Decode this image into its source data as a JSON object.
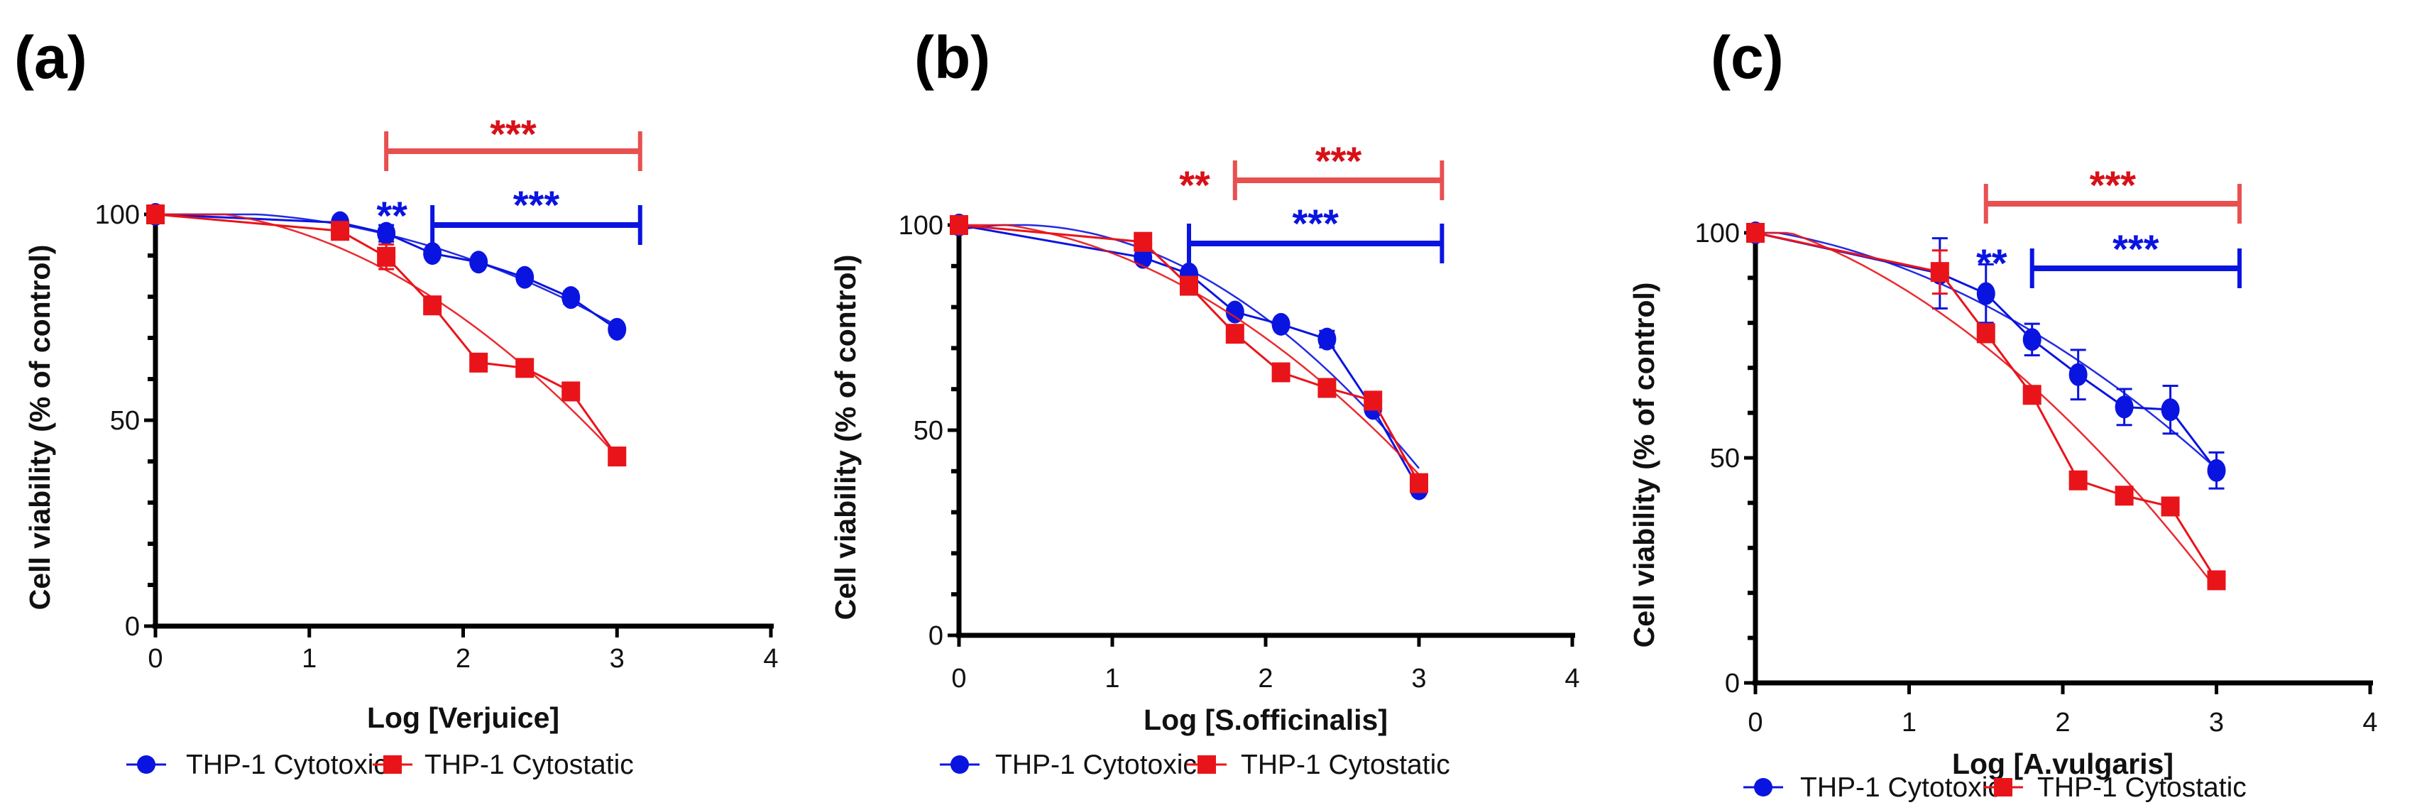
{
  "chart_data": [
    {
      "type": "line",
      "panel_label": "(a)",
      "xlabel": "Log [Verjuice]",
      "ylabel": "Cell viability (% of control)",
      "xlim": [
        0,
        4
      ],
      "ylim": [
        0,
        100
      ],
      "xticks": [
        "0",
        "1",
        "2",
        "3",
        "4"
      ],
      "yticks": [
        "0",
        "50",
        "100"
      ],
      "x": [
        0,
        1.2,
        1.5,
        1.8,
        2.1,
        2.4,
        2.7,
        3.0
      ],
      "series": [
        {
          "name": "THP-1 Cytotoxic",
          "marker": "circle",
          "color": "#0a14e0",
          "values": [
            100,
            98,
            95.4,
            90.5,
            88.4,
            84.7,
            79.8,
            72.1
          ],
          "err": [
            0,
            0.5,
            2,
            1,
            0.5,
            0.5,
            1.5,
            0.5
          ]
        },
        {
          "name": "THP-1 Cytostatic",
          "marker": "square",
          "color": "#e8141a",
          "values": [
            100,
            96,
            89.7,
            77.9,
            64,
            62.7,
            57,
            41.2
          ],
          "err": [
            0,
            0.5,
            3,
            0.5,
            0.5,
            0.5,
            0.5,
            0.5
          ]
        }
      ],
      "significance": [
        {
          "series": "THP-1 Cytostatic",
          "label": "***",
          "from": 1.5,
          "to": 3.15
        },
        {
          "series": "THP-1 Cytotoxic",
          "label": "***",
          "from": 1.8,
          "to": 3.15
        },
        {
          "series": "THP-1 Cytotoxic",
          "label": "**",
          "at": 1.5
        }
      ]
    },
    {
      "type": "line",
      "panel_label": "(b)",
      "xlabel": "Log [S.officinalis]",
      "ylabel": "Cell viability (% of control)",
      "xlim": [
        0,
        4
      ],
      "ylim": [
        0,
        100
      ],
      "xticks": [
        "0",
        "1",
        "2",
        "3",
        "4"
      ],
      "yticks": [
        "0",
        "50",
        "100"
      ],
      "x": [
        0,
        1.2,
        1.5,
        1.8,
        2.1,
        2.4,
        2.7,
        3.0
      ],
      "series": [
        {
          "name": "THP-1 Cytotoxic",
          "marker": "circle",
          "color": "#0a14e0",
          "values": [
            100,
            92.1,
            88.1,
            78.8,
            75.8,
            72.2,
            55.3,
            35.7
          ],
          "err": [
            0,
            0.5,
            0.5,
            0.5,
            0.5,
            2,
            0.5,
            0.5
          ]
        },
        {
          "name": "THP-1 Cytostatic",
          "marker": "square",
          "color": "#e8141a",
          "values": [
            100,
            95.9,
            85.2,
            73.5,
            64.1,
            60.3,
            57.2,
            37.1
          ],
          "err": [
            0,
            0.5,
            0.5,
            0.5,
            0.5,
            0.5,
            0.5,
            0.5
          ]
        }
      ],
      "significance": [
        {
          "series": "THP-1 Cytostatic",
          "label": "***",
          "from": 1.8,
          "to": 3.15
        },
        {
          "series": "THP-1 Cytostatic",
          "label": "**",
          "at": 1.5
        },
        {
          "series": "THP-1 Cytotoxic",
          "label": "***",
          "from": 1.5,
          "to": 3.15
        }
      ]
    },
    {
      "type": "line",
      "panel_label": "(c)",
      "xlabel": "Log [A.vulgaris]",
      "ylabel": "Cell viability (% of control)",
      "xlim": [
        0,
        4
      ],
      "ylim": [
        0,
        100
      ],
      "xticks": [
        "0",
        "1",
        "2",
        "3",
        "4"
      ],
      "yticks": [
        "0",
        "50",
        "100"
      ],
      "x": [
        0,
        1.2,
        1.5,
        1.8,
        2.1,
        2.4,
        2.7,
        3.0
      ],
      "series": [
        {
          "name": "THP-1 Cytotoxic",
          "marker": "circle",
          "color": "#0a14e0",
          "values": [
            100,
            91,
            86.5,
            76.3,
            68.5,
            61.3,
            60.7,
            47.2
          ],
          "err": [
            0,
            7.8,
            6.5,
            3.5,
            5.5,
            4,
            5.3,
            4
          ]
        },
        {
          "name": "THP-1 Cytostatic",
          "marker": "square",
          "color": "#e8141a",
          "values": [
            100,
            91.3,
            77.7,
            64,
            45,
            41.6,
            39.2,
            22.8
          ],
          "err": [
            0,
            4.8,
            2,
            0.5,
            0.5,
            0.5,
            0.5,
            0.5
          ]
        }
      ],
      "significance": [
        {
          "series": "THP-1 Cytostatic",
          "label": "***",
          "from": 1.5,
          "to": 3.15
        },
        {
          "series": "THP-1 Cytotoxic",
          "label": "***",
          "from": 1.8,
          "to": 3.15
        },
        {
          "series": "THP-1 Cytotoxic",
          "label": "**",
          "at": 1.5
        }
      ]
    }
  ],
  "colors": {
    "cytotoxic": "#0a14e0",
    "cytostatic": "#e8141a",
    "cytostatic_bar": "#e85050"
  }
}
